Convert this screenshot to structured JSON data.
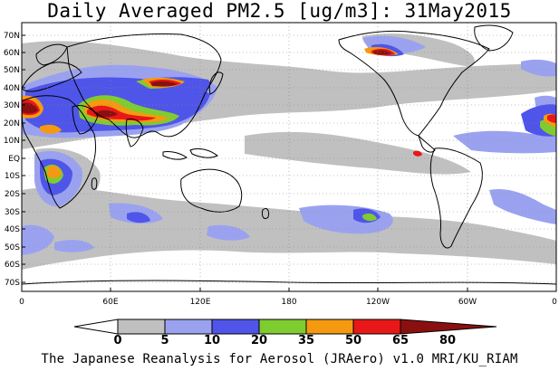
{
  "title": "Daily Averaged PM2.5 [ug/m3]: 31May2015",
  "footer": "The Japanese Reanalysis for Aerosol (JRAero) v1.0 MRI/KU_RIAM",
  "map": {
    "lat_labels": [
      "70N",
      "60N",
      "50N",
      "40N",
      "30N",
      "20N",
      "10N",
      "EQ",
      "10S",
      "20S",
      "30S",
      "40S",
      "50S",
      "60S",
      "70S"
    ],
    "lon_labels": [
      "0",
      "60E",
      "120E",
      "180",
      "120W",
      "60W",
      "0"
    ]
  },
  "legend": {
    "bins": [
      {
        "label": "0",
        "color": "#ffffff"
      },
      {
        "label": "5",
        "color": "#c0c0c0"
      },
      {
        "label": "10",
        "color": "#9aa2f0"
      },
      {
        "label": "20",
        "color": "#4f55e8"
      },
      {
        "label": "35",
        "color": "#7fcc30"
      },
      {
        "label": "50",
        "color": "#f59a10"
      },
      {
        "label": "65",
        "color": "#e81818"
      },
      {
        "label": "80",
        "color": "#8a1010"
      }
    ]
  }
}
